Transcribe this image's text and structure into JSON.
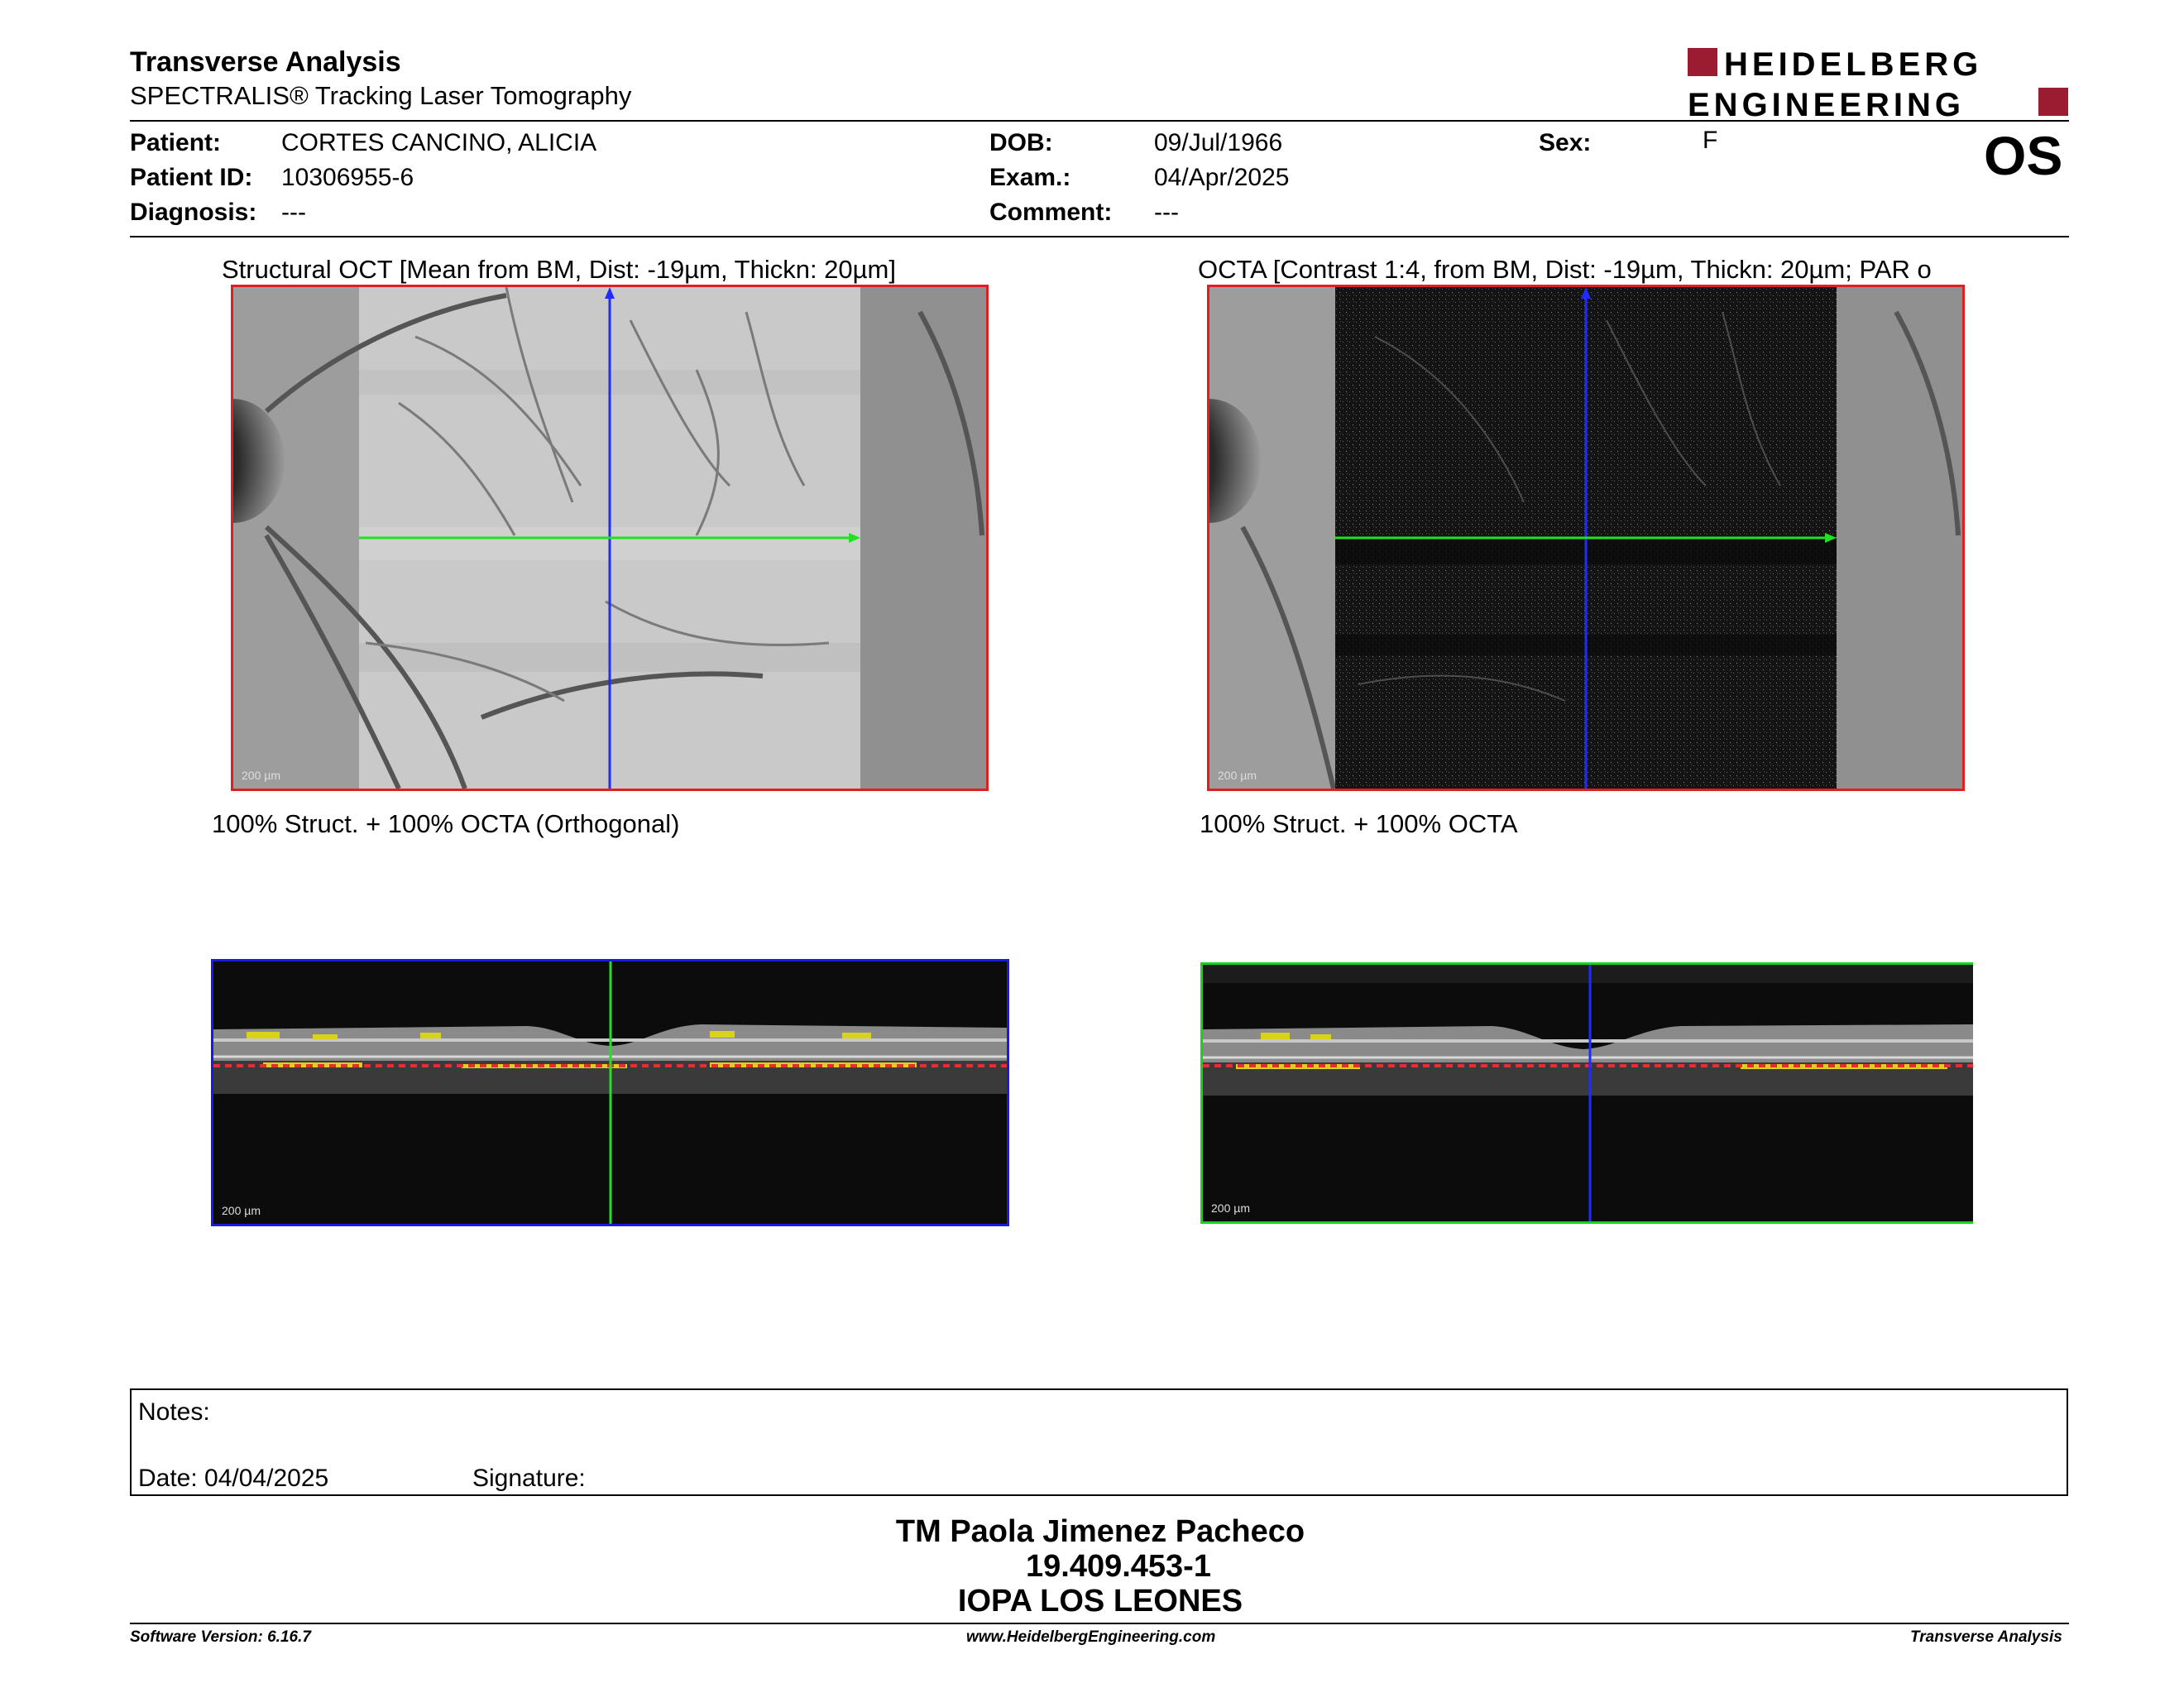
{
  "header": {
    "title": "Transverse Analysis",
    "subtitle": "SPECTRALIS® Tracking Laser Tomography",
    "logo_line1": "HEIDELBERG",
    "logo_line2": "ENGINEERING",
    "eye": "OS"
  },
  "patient": {
    "patient_label": "Patient:",
    "patient_value": "CORTES CANCINO, ALICIA",
    "patient_id_label": "Patient ID:",
    "patient_id_value": "10306955-6",
    "diagnosis_label": "Diagnosis:",
    "diagnosis_value": "---",
    "dob_label": "DOB:",
    "dob_value": "09/Jul/1966",
    "exam_label": "Exam.:",
    "exam_value": "04/Apr/2025",
    "comment_label": "Comment:",
    "comment_value": "---",
    "sex_label": "Sex:",
    "sex_value": "F"
  },
  "images": {
    "left_top_caption": "Structural OCT [Mean from BM, Dist: -19µm, Thickn: 20µm]",
    "right_top_caption": "OCTA [Contrast 1:4, from BM, Dist: -19µm, Thickn: 20µm; PAR o",
    "left_bottom_caption": "100% Struct. + 100% OCTA (Orthogonal)",
    "right_bottom_caption": "100% Struct. + 100% OCTA",
    "scale_label": "200 µm"
  },
  "notes": {
    "notes_label": "Notes:",
    "date_label": "Date: 04/04/2025",
    "signature_label": "Signature:"
  },
  "signer": {
    "name": "TM Paola Jimenez Pacheco",
    "id": "19.409.453-1",
    "institution": "IOPA LOS LEONES"
  },
  "footer": {
    "software_version": "Software Version: 6.16.7",
    "website": "www.HeidelbergEngineering.com",
    "report_type": "Transverse Analysis"
  },
  "colors": {
    "logo_accent": "#9b1b30",
    "frame_red": "#e02020",
    "frame_blue": "#1a1adf",
    "frame_green": "#19d219",
    "marker_blue": "#1f2bff",
    "marker_green": "#22e022"
  }
}
